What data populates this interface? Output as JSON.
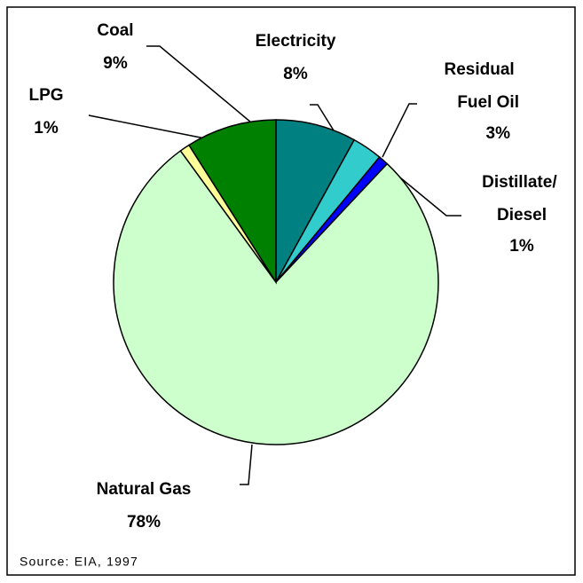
{
  "chart_data": {
    "type": "pie",
    "categories": [
      "Electricity",
      "Residual Fuel Oil",
      "Distillate/ Diesel",
      "Natural Gas",
      "LPG",
      "Coal"
    ],
    "values": [
      8,
      3,
      1,
      78,
      1,
      9
    ],
    "value_labels": [
      "8%",
      "3%",
      "1%",
      "78%",
      "1%",
      "9%"
    ],
    "colors": [
      "#008080",
      "#33cccc",
      "#0000ff",
      "#ccffcc",
      "#ffff99",
      "#008000"
    ],
    "source": "Source: EIA, 1997"
  }
}
